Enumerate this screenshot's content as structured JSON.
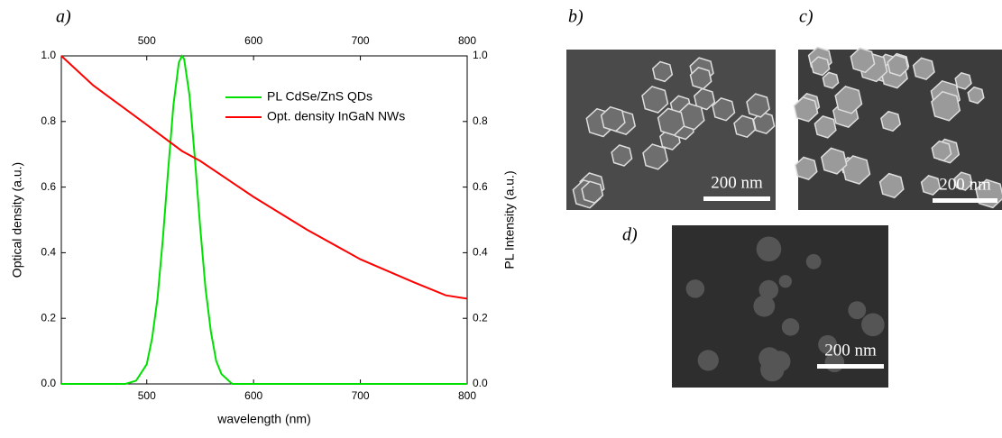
{
  "chart_data": {
    "type": "line",
    "xlabel": "wavelength (nm)",
    "ylabel": "Optical density (a.u.)",
    "y2label": "PL Intensity (a.u.)",
    "xlim": [
      420,
      800
    ],
    "xticks": [
      500,
      600,
      700,
      800
    ],
    "x2ticks": [
      500,
      600,
      700,
      800
    ],
    "ylim": [
      0,
      1
    ],
    "yticks": [
      {
        "value": 0,
        "label": "0.0"
      },
      0.2,
      0.4,
      0.6,
      0.8,
      {
        "value": 1,
        "label": "1.0"
      }
    ],
    "y2lim": [
      0,
      1
    ],
    "y2ticks": [
      {
        "value": 0,
        "label": "0.0"
      },
      0.2,
      0.4,
      0.6,
      0.8,
      {
        "value": 1,
        "label": "1.0"
      }
    ],
    "legend": "upper right",
    "series": [
      {
        "name": "PL CdSe/ZnS QDs",
        "color": "#00e000",
        "axis": "y2",
        "x": [
          420,
          460,
          480,
          490,
          500,
          505,
          510,
          515,
          520,
          525,
          530,
          533,
          535,
          540,
          545,
          550,
          555,
          560,
          565,
          570,
          580,
          600,
          650,
          700,
          800
        ],
        "values": [
          0,
          0,
          0,
          0.01,
          0.06,
          0.14,
          0.26,
          0.44,
          0.65,
          0.85,
          0.98,
          1,
          0.99,
          0.88,
          0.69,
          0.48,
          0.29,
          0.16,
          0.07,
          0.03,
          0,
          0,
          0,
          0,
          0
        ]
      },
      {
        "name": "Opt. density InGaN NWs",
        "color": "#ff0000",
        "axis": "y",
        "x": [
          420,
          450,
          500,
          533,
          550,
          600,
          650,
          700,
          750,
          780,
          800
        ],
        "values": [
          1,
          0.91,
          0.79,
          0.71,
          0.68,
          0.57,
          0.47,
          0.38,
          0.31,
          0.27,
          0.26
        ]
      }
    ]
  },
  "panels": {
    "a": "a)",
    "b": "b)",
    "c": "c)",
    "d": "d)",
    "scale_b": "200 nm",
    "scale_c": "200 nm",
    "scale_d": "200 nm"
  }
}
